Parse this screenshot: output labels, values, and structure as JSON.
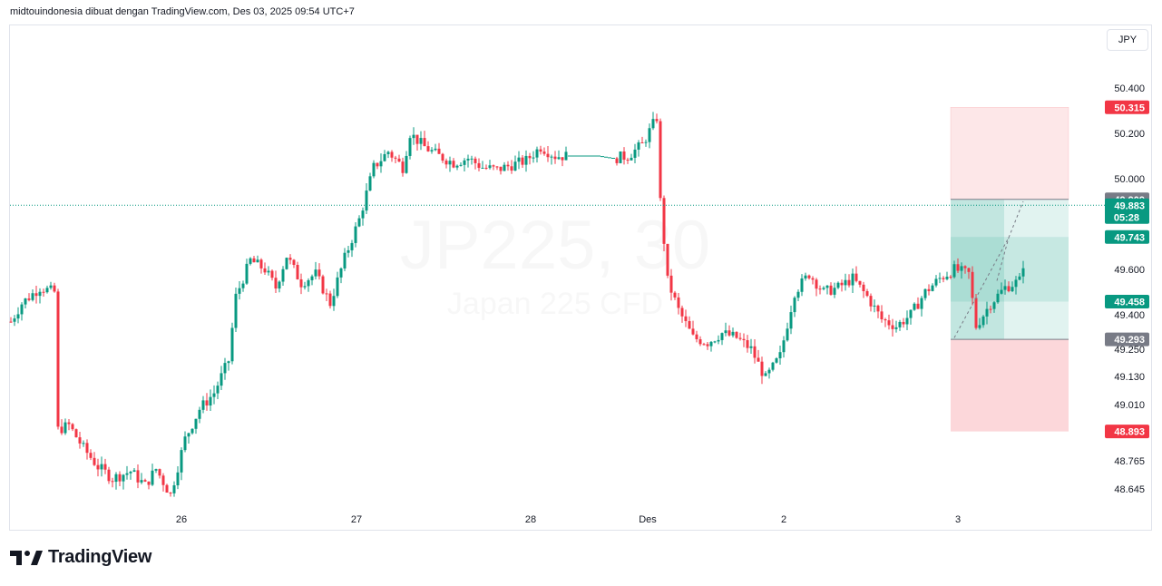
{
  "header": {
    "attribution": "midtouindonesia dibuat dengan TradingView.com, Des 03, 2025 09:54 UTC+7"
  },
  "toolbar": {
    "currency": "JPY"
  },
  "watermark": {
    "symbol": "JP225, 30",
    "name": "Japan 225 CFD"
  },
  "logo": {
    "text": "TradingView"
  },
  "colors": {
    "up": "#089981",
    "down": "#f23645",
    "tp_zone": "#089981",
    "sl_zone": "#f23645",
    "gray_tag": "#787b86"
  },
  "chart_data": {
    "type": "candlestick",
    "symbol": "JP225, 30",
    "instrument": "Japan 225 CFD",
    "currency": "JPY",
    "y_ticks": [
      "50.400",
      "50.200",
      "50.000",
      "49.600",
      "49.400",
      "49.250",
      "49.130",
      "49.010",
      "48.765",
      "48.645"
    ],
    "x_ticks": [
      "26",
      "27",
      "28",
      "Des",
      "2",
      "3"
    ],
    "price_tags": [
      {
        "label": "50.315",
        "color": "red"
      },
      {
        "label": "49.909",
        "color": "gray"
      },
      {
        "label": "49.883",
        "sub": "05:28",
        "color": "green"
      },
      {
        "label": "49.743",
        "color": "green"
      },
      {
        "label": "49.458",
        "color": "green"
      },
      {
        "label": "49.293",
        "color": "gray"
      },
      {
        "label": "48.893",
        "color": "red"
      }
    ],
    "position": {
      "entry": 49.293,
      "target": 49.909,
      "stop": 48.893,
      "upper_band": 50.315
    },
    "last_price": 49.883,
    "countdown": "05:28",
    "close_path_points": [
      {
        "x": 0,
        "y": 49.37
      },
      {
        "x": 3,
        "y": 49.45
      },
      {
        "x": 8,
        "y": 49.52
      },
      {
        "x": 12,
        "y": 49.5
      },
      {
        "x": 13,
        "y": 48.9
      },
      {
        "x": 16,
        "y": 48.92
      },
      {
        "x": 20,
        "y": 48.82
      },
      {
        "x": 24,
        "y": 48.74
      },
      {
        "x": 28,
        "y": 48.69
      },
      {
        "x": 33,
        "y": 48.72
      },
      {
        "x": 37,
        "y": 48.66
      },
      {
        "x": 40,
        "y": 48.73
      },
      {
        "x": 44,
        "y": 48.62
      },
      {
        "x": 48,
        "y": 48.86
      },
      {
        "x": 52,
        "y": 48.99
      },
      {
        "x": 56,
        "y": 49.06
      },
      {
        "x": 60,
        "y": 49.2
      },
      {
        "x": 62,
        "y": 49.48
      },
      {
        "x": 66,
        "y": 49.64
      },
      {
        "x": 70,
        "y": 49.6
      },
      {
        "x": 73,
        "y": 49.52
      },
      {
        "x": 76,
        "y": 49.66
      },
      {
        "x": 80,
        "y": 49.54
      },
      {
        "x": 84,
        "y": 49.58
      },
      {
        "x": 88,
        "y": 49.45
      },
      {
        "x": 92,
        "y": 49.65
      },
      {
        "x": 96,
        "y": 49.82
      },
      {
        "x": 100,
        "y": 50.05
      },
      {
        "x": 104,
        "y": 50.12
      },
      {
        "x": 108,
        "y": 50.05
      },
      {
        "x": 110,
        "y": 50.2
      },
      {
        "x": 114,
        "y": 50.14
      },
      {
        "x": 118,
        "y": 50.1
      },
      {
        "x": 122,
        "y": 50.07
      },
      {
        "x": 126,
        "y": 50.09
      },
      {
        "x": 130,
        "y": 50.05
      },
      {
        "x": 134,
        "y": 50.04
      },
      {
        "x": 138,
        "y": 50.06
      },
      {
        "x": 142,
        "y": 50.08
      },
      {
        "x": 146,
        "y": 50.14
      },
      {
        "x": 150,
        "y": 50.1
      },
      {
        "x": 154,
        "y": 50.1
      },
      {
        "x": 158,
        "y": 50.1
      },
      {
        "x": 162,
        "y": 50.1
      },
      {
        "x": 166,
        "y": 50.09
      },
      {
        "x": 170,
        "y": 50.1
      },
      {
        "x": 174,
        "y": 50.15
      },
      {
        "x": 178,
        "y": 50.27
      },
      {
        "x": 179,
        "y": 49.9
      },
      {
        "x": 181,
        "y": 49.55
      },
      {
        "x": 184,
        "y": 49.42
      },
      {
        "x": 188,
        "y": 49.3
      },
      {
        "x": 192,
        "y": 49.28
      },
      {
        "x": 196,
        "y": 49.32
      },
      {
        "x": 200,
        "y": 49.3
      },
      {
        "x": 204,
        "y": 49.25
      },
      {
        "x": 208,
        "y": 49.12
      },
      {
        "x": 212,
        "y": 49.22
      },
      {
        "x": 216,
        "y": 49.5
      },
      {
        "x": 220,
        "y": 49.58
      },
      {
        "x": 224,
        "y": 49.5
      },
      {
        "x": 228,
        "y": 49.52
      },
      {
        "x": 232,
        "y": 49.56
      },
      {
        "x": 236,
        "y": 49.48
      },
      {
        "x": 240,
        "y": 49.38
      },
      {
        "x": 244,
        "y": 49.35
      },
      {
        "x": 248,
        "y": 49.4
      },
      {
        "x": 252,
        "y": 49.5
      },
      {
        "x": 256,
        "y": 49.56
      },
      {
        "x": 260,
        "y": 49.6
      },
      {
        "x": 264,
        "y": 49.58
      },
      {
        "x": 266,
        "y": 49.35
      },
      {
        "x": 270,
        "y": 49.45
      },
      {
        "x": 274,
        "y": 49.52
      },
      {
        "x": 278,
        "y": 49.55
      },
      {
        "x": 280,
        "y": 49.7
      },
      {
        "x": 282,
        "y": 49.75
      },
      {
        "x": 283,
        "y": 49.88
      }
    ]
  }
}
